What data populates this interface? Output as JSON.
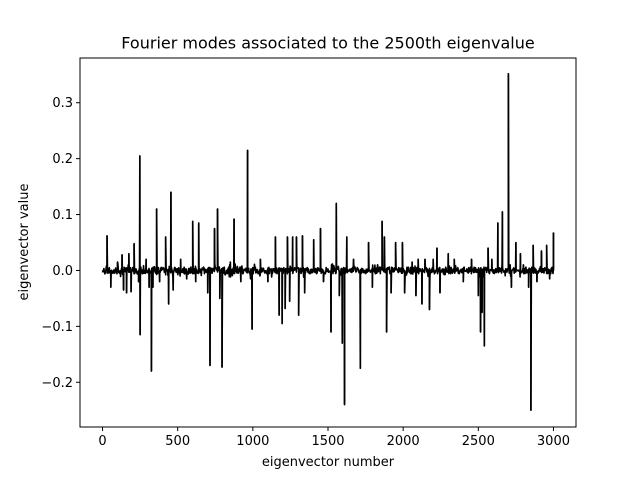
{
  "chart_data": {
    "type": "line",
    "title": "Fourier modes associated to the 2500th eigenvalue",
    "xlabel": "eigenvector number",
    "ylabel": "eigenvector value",
    "xlim": [
      -150,
      3150
    ],
    "ylim": [
      -0.28,
      0.38
    ],
    "xticks": [
      0,
      500,
      1000,
      1500,
      2000,
      2500,
      3000
    ],
    "xtick_labels": [
      "0",
      "500",
      "1000",
      "1500",
      "2000",
      "2500",
      "3000"
    ],
    "yticks": [
      -0.2,
      -0.1,
      0.0,
      0.1,
      0.2,
      0.3
    ],
    "ytick_labels": [
      "−0.2",
      "−0.1",
      "0.0",
      "0.1",
      "0.2",
      "0.3"
    ],
    "grid": false,
    "legend": "none",
    "series_color": "#000000",
    "x_range": [
      0,
      3000
    ],
    "baseline_noise": 0.012,
    "spikes": [
      {
        "x": 30,
        "y": 0.062
      },
      {
        "x": 55,
        "y": -0.03
      },
      {
        "x": 100,
        "y": 0.015
      },
      {
        "x": 130,
        "y": 0.028
      },
      {
        "x": 140,
        "y": -0.035
      },
      {
        "x": 160,
        "y": -0.04
      },
      {
        "x": 175,
        "y": 0.03
      },
      {
        "x": 190,
        "y": -0.038
      },
      {
        "x": 210,
        "y": 0.048
      },
      {
        "x": 240,
        "y": -0.02
      },
      {
        "x": 248,
        "y": 0.205
      },
      {
        "x": 250,
        "y": -0.115
      },
      {
        "x": 290,
        "y": 0.02
      },
      {
        "x": 310,
        "y": -0.03
      },
      {
        "x": 325,
        "y": -0.18
      },
      {
        "x": 335,
        "y": -0.03
      },
      {
        "x": 360,
        "y": 0.11
      },
      {
        "x": 380,
        "y": -0.02
      },
      {
        "x": 420,
        "y": 0.06
      },
      {
        "x": 440,
        "y": -0.06
      },
      {
        "x": 455,
        "y": 0.14
      },
      {
        "x": 470,
        "y": -0.035
      },
      {
        "x": 520,
        "y": 0.02
      },
      {
        "x": 560,
        "y": -0.015
      },
      {
        "x": 600,
        "y": 0.088
      },
      {
        "x": 620,
        "y": -0.02
      },
      {
        "x": 640,
        "y": 0.085
      },
      {
        "x": 700,
        "y": -0.04
      },
      {
        "x": 715,
        "y": -0.17
      },
      {
        "x": 745,
        "y": 0.075
      },
      {
        "x": 765,
        "y": 0.11
      },
      {
        "x": 780,
        "y": -0.05
      },
      {
        "x": 795,
        "y": -0.173
      },
      {
        "x": 850,
        "y": 0.015
      },
      {
        "x": 875,
        "y": 0.092
      },
      {
        "x": 920,
        "y": -0.02
      },
      {
        "x": 965,
        "y": 0.215
      },
      {
        "x": 985,
        "y": -0.015
      },
      {
        "x": 995,
        "y": -0.105
      },
      {
        "x": 1050,
        "y": 0.02
      },
      {
        "x": 1100,
        "y": -0.02
      },
      {
        "x": 1150,
        "y": 0.06
      },
      {
        "x": 1175,
        "y": -0.08
      },
      {
        "x": 1195,
        "y": -0.095
      },
      {
        "x": 1215,
        "y": -0.068
      },
      {
        "x": 1230,
        "y": 0.06
      },
      {
        "x": 1245,
        "y": -0.055
      },
      {
        "x": 1265,
        "y": 0.06
      },
      {
        "x": 1290,
        "y": 0.06
      },
      {
        "x": 1305,
        "y": -0.08
      },
      {
        "x": 1330,
        "y": 0.062
      },
      {
        "x": 1345,
        "y": -0.04
      },
      {
        "x": 1405,
        "y": 0.055
      },
      {
        "x": 1450,
        "y": 0.075
      },
      {
        "x": 1470,
        "y": -0.02
      },
      {
        "x": 1520,
        "y": -0.11
      },
      {
        "x": 1555,
        "y": 0.12
      },
      {
        "x": 1575,
        "y": -0.045
      },
      {
        "x": 1595,
        "y": -0.13
      },
      {
        "x": 1610,
        "y": -0.24
      },
      {
        "x": 1625,
        "y": 0.06
      },
      {
        "x": 1670,
        "y": 0.02
      },
      {
        "x": 1715,
        "y": -0.175
      },
      {
        "x": 1770,
        "y": 0.05
      },
      {
        "x": 1795,
        "y": -0.03
      },
      {
        "x": 1830,
        "y": 0.01
      },
      {
        "x": 1860,
        "y": 0.088
      },
      {
        "x": 1875,
        "y": 0.06
      },
      {
        "x": 1890,
        "y": -0.11
      },
      {
        "x": 1920,
        "y": -0.04
      },
      {
        "x": 1950,
        "y": 0.05
      },
      {
        "x": 1995,
        "y": 0.05
      },
      {
        "x": 2010,
        "y": -0.04
      },
      {
        "x": 2060,
        "y": 0.015
      },
      {
        "x": 2085,
        "y": -0.045
      },
      {
        "x": 2100,
        "y": 0.02
      },
      {
        "x": 2125,
        "y": -0.06
      },
      {
        "x": 2145,
        "y": 0.02
      },
      {
        "x": 2175,
        "y": -0.07
      },
      {
        "x": 2200,
        "y": 0.02
      },
      {
        "x": 2225,
        "y": 0.04
      },
      {
        "x": 2245,
        "y": -0.04
      },
      {
        "x": 2300,
        "y": 0.03
      },
      {
        "x": 2340,
        "y": 0.02
      },
      {
        "x": 2400,
        "y": -0.02
      },
      {
        "x": 2455,
        "y": 0.02
      },
      {
        "x": 2500,
        "y": -0.045
      },
      {
        "x": 2515,
        "y": -0.11
      },
      {
        "x": 2525,
        "y": -0.075
      },
      {
        "x": 2540,
        "y": -0.135
      },
      {
        "x": 2565,
        "y": 0.04
      },
      {
        "x": 2590,
        "y": 0.02
      },
      {
        "x": 2630,
        "y": 0.085
      },
      {
        "x": 2660,
        "y": 0.105
      },
      {
        "x": 2700,
        "y": 0.352
      },
      {
        "x": 2720,
        "y": -0.03
      },
      {
        "x": 2750,
        "y": 0.05
      },
      {
        "x": 2780,
        "y": 0.03
      },
      {
        "x": 2800,
        "y": 0.01
      },
      {
        "x": 2835,
        "y": -0.03
      },
      {
        "x": 2850,
        "y": -0.25
      },
      {
        "x": 2865,
        "y": 0.045
      },
      {
        "x": 2890,
        "y": -0.02
      },
      {
        "x": 2920,
        "y": 0.035
      },
      {
        "x": 2955,
        "y": 0.045
      },
      {
        "x": 2975,
        "y": -0.015
      },
      {
        "x": 3000,
        "y": 0.068
      }
    ]
  }
}
